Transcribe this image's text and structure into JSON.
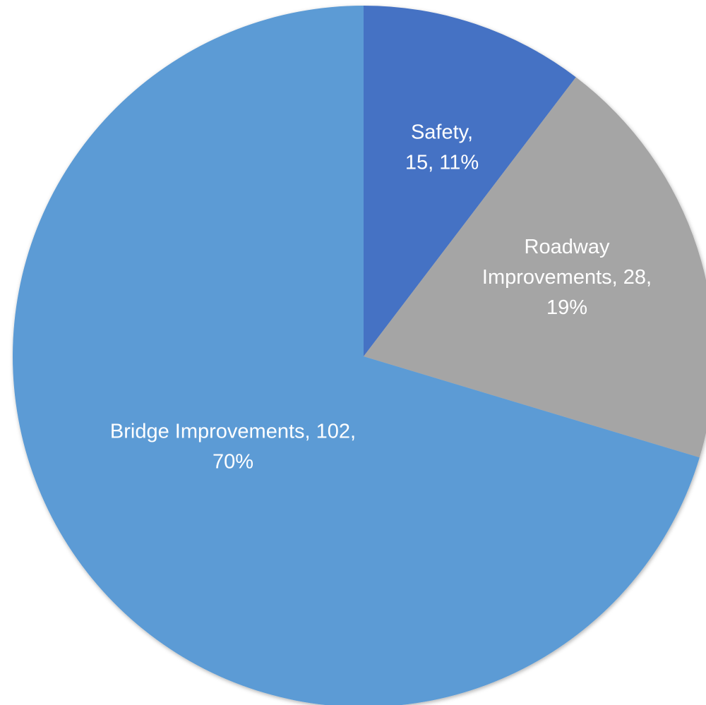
{
  "chart_data": {
    "type": "pie",
    "values": [
      15,
      28,
      102
    ],
    "value_labels": [
      "Safety, 15, 11%",
      "Roadway Improvements, 28, 19%",
      "Bridge Improvements, 102, 70%"
    ],
    "colors": [
      "#4472c4",
      "#a5a5a5",
      "#5b9bd5"
    ]
  }
}
